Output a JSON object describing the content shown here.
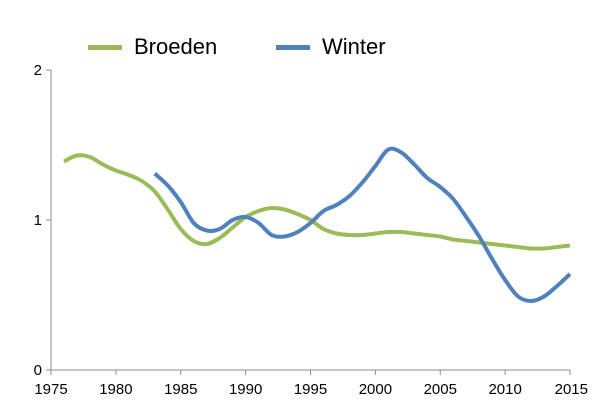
{
  "chart_data": {
    "type": "line",
    "legend": "top",
    "grid": false,
    "xlim": [
      1975,
      2015
    ],
    "ylim": [
      0,
      2
    ],
    "x_ticks": [
      "1975",
      "1980",
      "1985",
      "1990",
      "1995",
      "2000",
      "2005",
      "2010",
      "2015"
    ],
    "y_ticks": [
      "0",
      "1",
      "2"
    ],
    "series": [
      {
        "name": "Broeden",
        "color": "#9bbb59",
        "points": [
          [
            1976,
            1.39
          ],
          [
            1977,
            1.43
          ],
          [
            1978,
            1.42
          ],
          [
            1979,
            1.37
          ],
          [
            1980,
            1.33
          ],
          [
            1981,
            1.3
          ],
          [
            1982,
            1.26
          ],
          [
            1983,
            1.19
          ],
          [
            1984,
            1.07
          ],
          [
            1985,
            0.94
          ],
          [
            1986,
            0.86
          ],
          [
            1987,
            0.84
          ],
          [
            1988,
            0.88
          ],
          [
            1989,
            0.95
          ],
          [
            1990,
            1.02
          ],
          [
            1991,
            1.06
          ],
          [
            1992,
            1.08
          ],
          [
            1993,
            1.07
          ],
          [
            1994,
            1.04
          ],
          [
            1995,
            1.0
          ],
          [
            1996,
            0.94
          ],
          [
            1997,
            0.91
          ],
          [
            1998,
            0.9
          ],
          [
            1999,
            0.9
          ],
          [
            2000,
            0.91
          ],
          [
            2001,
            0.92
          ],
          [
            2002,
            0.92
          ],
          [
            2003,
            0.91
          ],
          [
            2004,
            0.9
          ],
          [
            2005,
            0.89
          ],
          [
            2006,
            0.87
          ],
          [
            2007,
            0.86
          ],
          [
            2008,
            0.85
          ],
          [
            2009,
            0.84
          ],
          [
            2010,
            0.83
          ],
          [
            2011,
            0.82
          ],
          [
            2012,
            0.81
          ],
          [
            2013,
            0.81
          ],
          [
            2014,
            0.82
          ],
          [
            2015,
            0.83
          ]
        ]
      },
      {
        "name": "Winter",
        "color": "#4f81bd",
        "points": [
          [
            1983,
            1.31
          ],
          [
            1984,
            1.23
          ],
          [
            1985,
            1.12
          ],
          [
            1986,
            0.98
          ],
          [
            1987,
            0.93
          ],
          [
            1988,
            0.94
          ],
          [
            1989,
            1.0
          ],
          [
            1990,
            1.02
          ],
          [
            1991,
            0.98
          ],
          [
            1992,
            0.9
          ],
          [
            1993,
            0.89
          ],
          [
            1994,
            0.92
          ],
          [
            1995,
            0.98
          ],
          [
            1996,
            1.06
          ],
          [
            1997,
            1.1
          ],
          [
            1998,
            1.16
          ],
          [
            1999,
            1.25
          ],
          [
            2000,
            1.36
          ],
          [
            2001,
            1.47
          ],
          [
            2002,
            1.45
          ],
          [
            2003,
            1.37
          ],
          [
            2004,
            1.28
          ],
          [
            2005,
            1.22
          ],
          [
            2006,
            1.14
          ],
          [
            2007,
            1.02
          ],
          [
            2008,
            0.89
          ],
          [
            2009,
            0.74
          ],
          [
            2010,
            0.6
          ],
          [
            2011,
            0.49
          ],
          [
            2012,
            0.46
          ],
          [
            2013,
            0.49
          ],
          [
            2014,
            0.56
          ],
          [
            2015,
            0.64
          ]
        ]
      }
    ]
  }
}
